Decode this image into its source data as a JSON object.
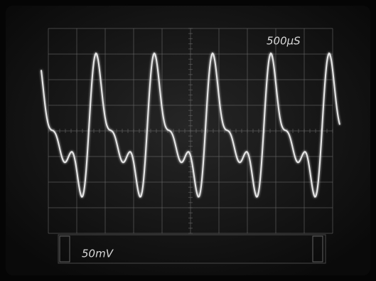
{
  "screen": {
    "timebase": "500µS",
    "volts_per_div": "50mV"
  }
}
